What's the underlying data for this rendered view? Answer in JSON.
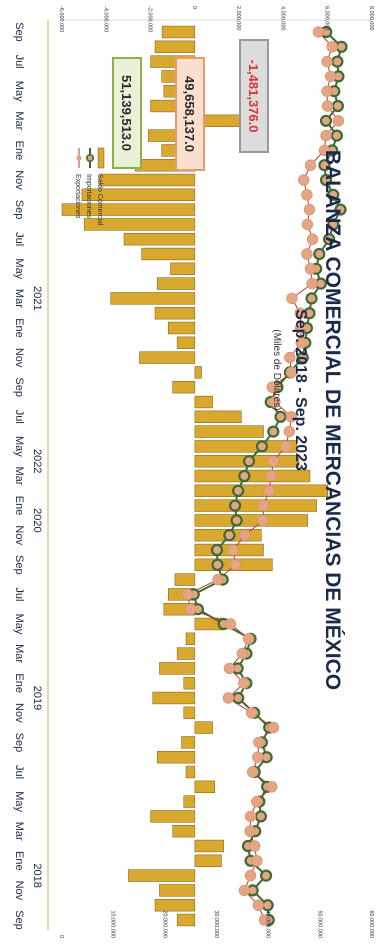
{
  "chart_data": {
    "type": "bar",
    "title": "BALANZA COMERCIAL DE MERCANCIAS DE MÉXICO",
    "subtitle": "Sep. 2018 - Sep. 2023",
    "units": "(Miles de Dólares)",
    "legend": {
      "placement": "top-left",
      "items": [
        "Saldo Comercial",
        "Importaciones",
        "Exportaciones"
      ]
    },
    "series_colors": {
      "Saldo Comercial": "#d9a82e",
      "Importaciones": "#3e6b34",
      "Exportaciones": "#e3a583"
    },
    "x_tick_labels": [
      "Sep",
      "Nov",
      "Ene",
      "Mar",
      "May",
      "Jul",
      "Sep",
      "Nov",
      "Ene",
      "Mar",
      "May",
      "Jul",
      "Sep",
      "Nov",
      "Ene",
      "Mar",
      "May",
      "Jul",
      "Sep",
      "Nov",
      "Ene",
      "Mar",
      "May",
      "Jul",
      "Sep",
      "Nov",
      "Ene",
      "Mar",
      "May",
      "Jul",
      "Sep"
    ],
    "year_labels": [
      {
        "label": "2018",
        "at_month_index": 3
      },
      {
        "label": "2019",
        "at_month_index": 15
      },
      {
        "label": "2020",
        "at_month_index": 27
      },
      {
        "label": "2022",
        "at_month_index": 31
      },
      {
        "label": "2021",
        "at_month_index": 42
      }
    ],
    "left_axis": {
      "ticks": [
        "0",
        "10,000,000",
        "20,000,000",
        "30,000,000",
        "40,000,000",
        "50,000,000",
        "60,000,000"
      ],
      "ylim": [
        0,
        60000000
      ]
    },
    "right_axis": {
      "ticks": [
        "-6,000,000",
        "-4,000,000",
        "-2,000,000",
        "0",
        "2,000,000",
        "4,000,000",
        "6,000,000",
        "8,000,000"
      ],
      "ylim": [
        -6000000,
        8000000
      ]
    },
    "annotations": [
      {
        "text": "51,139,513.0",
        "color": "#e8f0d8",
        "border": "#8cb14a",
        "text_color": "#2a2a2a"
      },
      {
        "text": "49,658,137.0",
        "color": "#fbe0d0",
        "border": "#e89a6a",
        "text_color": "#2a2a2a"
      },
      {
        "text": "-1,481,376.0",
        "color": "#dcdcdc",
        "border": "#999999",
        "text_color": "#d8343a"
      }
    ],
    "months": 61,
    "saldo": [
      -800000,
      -1800000,
      -1600000,
      -3000000,
      1200000,
      1300000,
      -1000000,
      -2000000,
      -500000,
      900000,
      -400000,
      -1700000,
      -600000,
      800000,
      -500000,
      -1900000,
      -500000,
      -1600000,
      -800000,
      -400000,
      1300000,
      -1400000,
      -1200000,
      -900000,
      3500000,
      3100000,
      3000000,
      5100000,
      5500000,
      6000000,
      5200000,
      4700000,
      4600000,
      3100000,
      2100000,
      800000,
      -1000000,
      300000,
      -2500000,
      -800000,
      -1200000,
      -1800000,
      -3800000,
      -1700000,
      -1100000,
      -2400000,
      -3200000,
      -5000000,
      -6000000,
      -5100000,
      -4300000,
      -2700000,
      -1500000,
      -2100000,
      2400000,
      -2000000,
      -1400000,
      -1500000,
      -2000000,
      -1800000,
      -1481376
    ],
    "importaciones": [
      40000000,
      39800000,
      36900000,
      39500000,
      36500000,
      36000000,
      37400000,
      38500000,
      38200000,
      39700000,
      37300000,
      39600000,
      38700000,
      40100000,
      37200000,
      34100000,
      35700000,
      34000000,
      35700000,
      36500000,
      31300000,
      26300000,
      25500000,
      31100000,
      30100000,
      30000000,
      32400000,
      33800000,
      33500000,
      34100000,
      35300000,
      36200000,
      38700000,
      40900000,
      42300000,
      40400000,
      41700000,
      44100000,
      46600000,
      47100000,
      47400000,
      47900000,
      48300000,
      50100000,
      49200000,
      49800000,
      51700000,
      52500000,
      53900000,
      52500000,
      51100000,
      50800000,
      52300000,
      53200000,
      51100000,
      53400000,
      52700000,
      53500000,
      53300000,
      54100000,
      51139513
    ],
    "exportaciones": [
      39200000,
      38000000,
      35300000,
      36500000,
      37700000,
      37300000,
      36400000,
      36500000,
      37700000,
      40600000,
      36900000,
      37900000,
      38100000,
      40900000,
      36700000,
      32200000,
      35200000,
      32400000,
      34900000,
      36100000,
      32600000,
      24900000,
      24300000,
      30200000,
      33600000,
      33100000,
      35400000,
      38900000,
      39000000,
      40100000,
      40500000,
      40900000,
      43300000,
      44000000,
      44400000,
      41200000,
      40700000,
      44400000,
      44100000,
      46300000,
      46200000,
      46100000,
      44500000,
      48400000,
      48100000,
      47400000,
      48500000,
      47500000,
      47900000,
      47400000,
      46800000,
      48100000,
      50800000,
      51100000,
      53500000,
      51400000,
      51300000,
      52000000,
      51300000,
      52300000,
      49658137
    ]
  }
}
